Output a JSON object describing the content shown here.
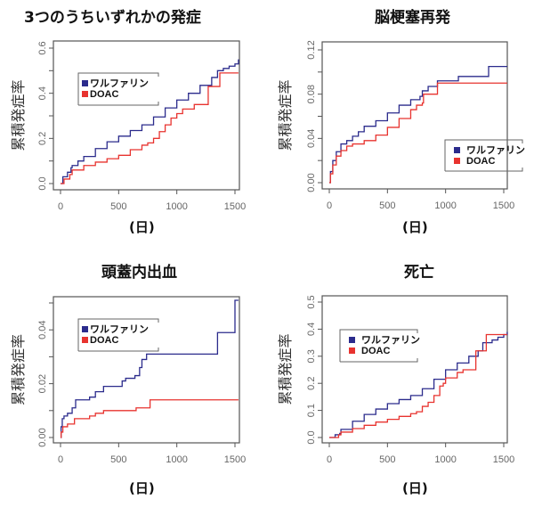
{
  "chart_data": [
    {
      "type": "line",
      "title": "3つのうちいずれかの発症",
      "xlabel": "(日)",
      "ylabel": "累積発症率",
      "xlim": [
        0,
        1500
      ],
      "ylim": [
        0,
        0.6
      ],
      "xticks": [
        0,
        500,
        1000,
        1500
      ],
      "yticks": [
        0.0,
        0.1,
        0.2,
        0.3,
        0.4,
        0.5,
        0.6
      ],
      "ytick_labels": [
        "0.0",
        "",
        "0.2",
        "",
        "0.4",
        "",
        "0.6"
      ],
      "legend_position": "upper-left",
      "step": true,
      "series": [
        {
          "name": "ワルファリン",
          "color": "#2b2b8c",
          "x": [
            0,
            20,
            60,
            90,
            100,
            150,
            200,
            300,
            400,
            500,
            600,
            700,
            800,
            900,
            1000,
            1100,
            1200,
            1300,
            1350,
            1400,
            1450,
            1500,
            1530
          ],
          "y": [
            0.0,
            0.03,
            0.05,
            0.07,
            0.08,
            0.1,
            0.12,
            0.155,
            0.185,
            0.21,
            0.235,
            0.26,
            0.295,
            0.335,
            0.37,
            0.4,
            0.435,
            0.47,
            0.5,
            0.51,
            0.52,
            0.53,
            0.55
          ]
        },
        {
          "name": "DOAC",
          "color": "#e8332f",
          "x": [
            0,
            30,
            80,
            100,
            200,
            300,
            400,
            500,
            600,
            700,
            750,
            800,
            850,
            900,
            950,
            1000,
            1050,
            1150,
            1250,
            1270,
            1350,
            1370,
            1530
          ],
          "y": [
            0.0,
            0.02,
            0.04,
            0.06,
            0.08,
            0.095,
            0.11,
            0.125,
            0.15,
            0.17,
            0.18,
            0.2,
            0.23,
            0.26,
            0.29,
            0.31,
            0.33,
            0.35,
            0.35,
            0.43,
            0.43,
            0.49,
            0.49
          ]
        }
      ]
    },
    {
      "type": "line",
      "title": "脳梗塞再発",
      "xlabel": "(日)",
      "ylabel": "累積発症率",
      "xlim": [
        0,
        1500
      ],
      "ylim": [
        0,
        0.12
      ],
      "xticks": [
        0,
        500,
        1000,
        1500
      ],
      "yticks": [
        0.0,
        0.02,
        0.04,
        0.06,
        0.08,
        0.1,
        0.12
      ],
      "ytick_labels": [
        "0.00",
        "",
        "0.04",
        "",
        "0.08",
        "",
        "0.12"
      ],
      "legend_position": "lower-right",
      "step": true,
      "series": [
        {
          "name": "ワルファリン",
          "color": "#2b2b8c",
          "x": [
            0,
            10,
            30,
            60,
            100,
            150,
            200,
            250,
            300,
            400,
            500,
            600,
            700,
            780,
            800,
            850,
            920,
            930,
            1100,
            1110,
            1360,
            1370,
            1530
          ],
          "y": [
            0.0,
            0.01,
            0.02,
            0.028,
            0.035,
            0.038,
            0.042,
            0.046,
            0.051,
            0.056,
            0.063,
            0.07,
            0.075,
            0.078,
            0.083,
            0.087,
            0.087,
            0.092,
            0.092,
            0.096,
            0.096,
            0.105,
            0.105
          ]
        },
        {
          "name": "DOAC",
          "color": "#e8332f",
          "x": [
            0,
            10,
            30,
            60,
            100,
            150,
            200,
            300,
            400,
            500,
            600,
            700,
            750,
            800,
            810,
            920,
            930,
            1530
          ],
          "y": [
            0.0,
            0.008,
            0.016,
            0.024,
            0.029,
            0.033,
            0.035,
            0.038,
            0.043,
            0.05,
            0.058,
            0.066,
            0.07,
            0.072,
            0.08,
            0.08,
            0.09,
            0.09
          ]
        }
      ]
    },
    {
      "type": "line",
      "title": "頭蓋内出血",
      "xlabel": "(日)",
      "ylabel": "累積発症率",
      "xlim": [
        0,
        1500
      ],
      "ylim": [
        0,
        0.05
      ],
      "xticks": [
        0,
        500,
        1000,
        1500
      ],
      "yticks": [
        0.0,
        0.01,
        0.02,
        0.03,
        0.04,
        0.05
      ],
      "ytick_labels": [
        "0.00",
        "",
        "0.02",
        "",
        "0.04",
        ""
      ],
      "legend_position": "upper-left",
      "step": true,
      "series": [
        {
          "name": "ワルファリン",
          "color": "#2b2b8c",
          "x": [
            0,
            5,
            15,
            30,
            60,
            100,
            130,
            250,
            300,
            370,
            530,
            560,
            640,
            680,
            700,
            740,
            760,
            1340,
            1350,
            1490,
            1500,
            1530
          ],
          "y": [
            0.0,
            0.004,
            0.007,
            0.008,
            0.009,
            0.011,
            0.014,
            0.015,
            0.017,
            0.019,
            0.021,
            0.022,
            0.023,
            0.026,
            0.029,
            0.031,
            0.031,
            0.031,
            0.039,
            0.039,
            0.051,
            0.051
          ]
        },
        {
          "name": "DOAC",
          "color": "#e8332f",
          "x": [
            0,
            5,
            20,
            60,
            120,
            250,
            300,
            370,
            650,
            770,
            1530
          ],
          "y": [
            0.0,
            0.002,
            0.004,
            0.005,
            0.007,
            0.008,
            0.009,
            0.01,
            0.011,
            0.014,
            0.014
          ]
        }
      ]
    },
    {
      "type": "line",
      "title": "死亡",
      "xlabel": "(日)",
      "ylabel": "累積発症率",
      "xlim": [
        0,
        1500
      ],
      "ylim": [
        0,
        0.5
      ],
      "xticks": [
        0,
        500,
        1000,
        1500
      ],
      "yticks": [
        0.0,
        0.1,
        0.2,
        0.3,
        0.4,
        0.5
      ],
      "ytick_labels": [
        "0.0",
        "0.1",
        "0.2",
        "0.3",
        "0.4",
        "0.5"
      ],
      "legend_position": "upper-left",
      "step": true,
      "series": [
        {
          "name": "ワルファリン",
          "color": "#2b2b8c",
          "x": [
            0,
            50,
            90,
            100,
            200,
            300,
            400,
            500,
            600,
            700,
            800,
            900,
            1000,
            1100,
            1200,
            1280,
            1320,
            1400,
            1450,
            1500,
            1530
          ],
          "y": [
            0.0,
            0.01,
            0.015,
            0.03,
            0.06,
            0.085,
            0.105,
            0.125,
            0.14,
            0.155,
            0.18,
            0.215,
            0.25,
            0.275,
            0.3,
            0.32,
            0.35,
            0.36,
            0.37,
            0.38,
            0.39
          ]
        },
        {
          "name": "DOAC",
          "color": "#e8332f",
          "x": [
            0,
            80,
            100,
            200,
            300,
            400,
            500,
            600,
            700,
            750,
            800,
            850,
            900,
            950,
            980,
            1000,
            1050,
            1100,
            1150,
            1250,
            1260,
            1340,
            1350,
            1530
          ],
          "y": [
            0.0,
            0.01,
            0.02,
            0.033,
            0.045,
            0.057,
            0.067,
            0.078,
            0.088,
            0.095,
            0.115,
            0.13,
            0.155,
            0.19,
            0.2,
            0.22,
            0.22,
            0.24,
            0.25,
            0.25,
            0.32,
            0.32,
            0.38,
            0.38
          ]
        }
      ]
    }
  ]
}
